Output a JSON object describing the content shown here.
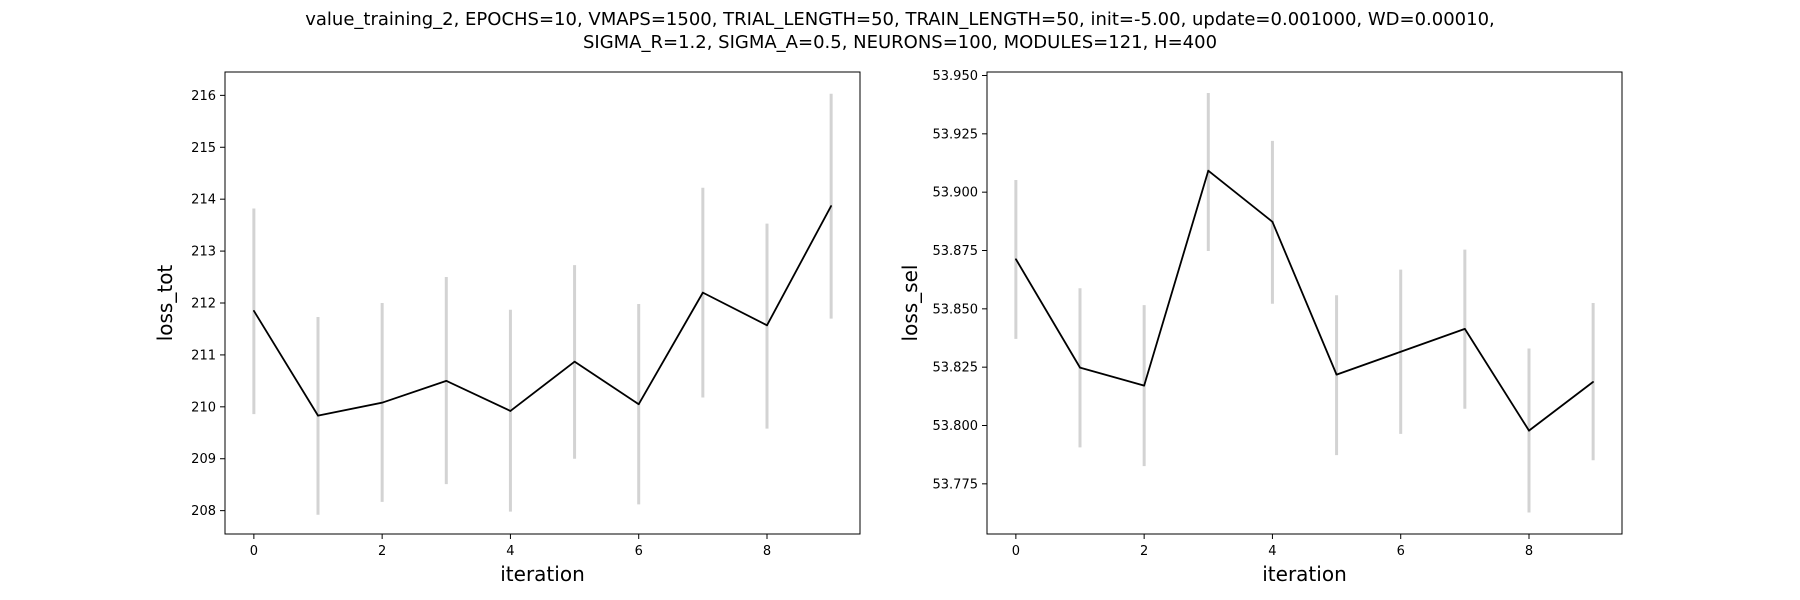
{
  "figure": {
    "title_line1": "value_training_2, EPOCHS=10, VMAPS=1500, TRIAL_LENGTH=50, TRAIN_LENGTH=50, init=-5.00, update=0.001000, WD=0.00010,",
    "title_line2": "SIGMA_R=1.2, SIGMA_A=0.5, NEURONS=100, MODULES=121, H=400"
  },
  "chart_data": [
    {
      "type": "line",
      "xlabel": "iteration",
      "ylabel": "loss_tot",
      "xlim": [
        -0.45,
        9.45
      ],
      "ylim": [
        207.55,
        216.45
      ],
      "xticks": [
        0,
        2,
        4,
        6,
        8
      ],
      "yticks": [
        208,
        209,
        210,
        211,
        212,
        213,
        214,
        215,
        216
      ],
      "ytick_labels": [
        "208",
        "209",
        "210",
        "211",
        "212",
        "213",
        "214",
        "215",
        "216"
      ],
      "grid": false,
      "line_color": "#000000",
      "errorbar_color": "#d3d3d3",
      "x": [
        0,
        1,
        2,
        3,
        4,
        5,
        6,
        7,
        8,
        9
      ],
      "y": [
        211.85,
        209.83,
        210.08,
        210.5,
        209.92,
        210.87,
        210.05,
        212.2,
        211.57,
        213.87
      ],
      "err_low": [
        209.86,
        207.92,
        208.17,
        208.51,
        207.98,
        209.0,
        208.12,
        210.18,
        209.58,
        211.7
      ],
      "err_high": [
        213.82,
        211.73,
        212.0,
        212.5,
        211.87,
        212.73,
        211.98,
        214.22,
        213.53,
        216.03
      ]
    },
    {
      "type": "line",
      "xlabel": "iteration",
      "ylabel": "loss_sel",
      "xlim": [
        -0.45,
        9.45
      ],
      "ylim": [
        53.7535,
        53.9515
      ],
      "xticks": [
        0,
        2,
        4,
        6,
        8
      ],
      "yticks": [
        53.775,
        53.8,
        53.825,
        53.85,
        53.875,
        53.9,
        53.925,
        53.95
      ],
      "ytick_labels": [
        "53.775",
        "53.800",
        "53.825",
        "53.850",
        "53.875",
        "53.900",
        "53.925",
        "53.950"
      ],
      "grid": false,
      "line_color": "#000000",
      "errorbar_color": "#d3d3d3",
      "x": [
        0,
        1,
        2,
        3,
        4,
        5,
        6,
        7,
        8,
        9
      ],
      "y": [
        53.8713,
        53.8248,
        53.8171,
        53.9092,
        53.8873,
        53.8218,
        53.8316,
        53.8414,
        53.7978,
        53.8187
      ],
      "err_low": [
        53.8371,
        53.7906,
        53.7826,
        53.8748,
        53.8522,
        53.7873,
        53.7964,
        53.8072,
        53.7627,
        53.7851
      ],
      "err_high": [
        53.9052,
        53.8588,
        53.8516,
        53.9425,
        53.922,
        53.8558,
        53.8668,
        53.8754,
        53.833,
        53.8525
      ]
    }
  ]
}
